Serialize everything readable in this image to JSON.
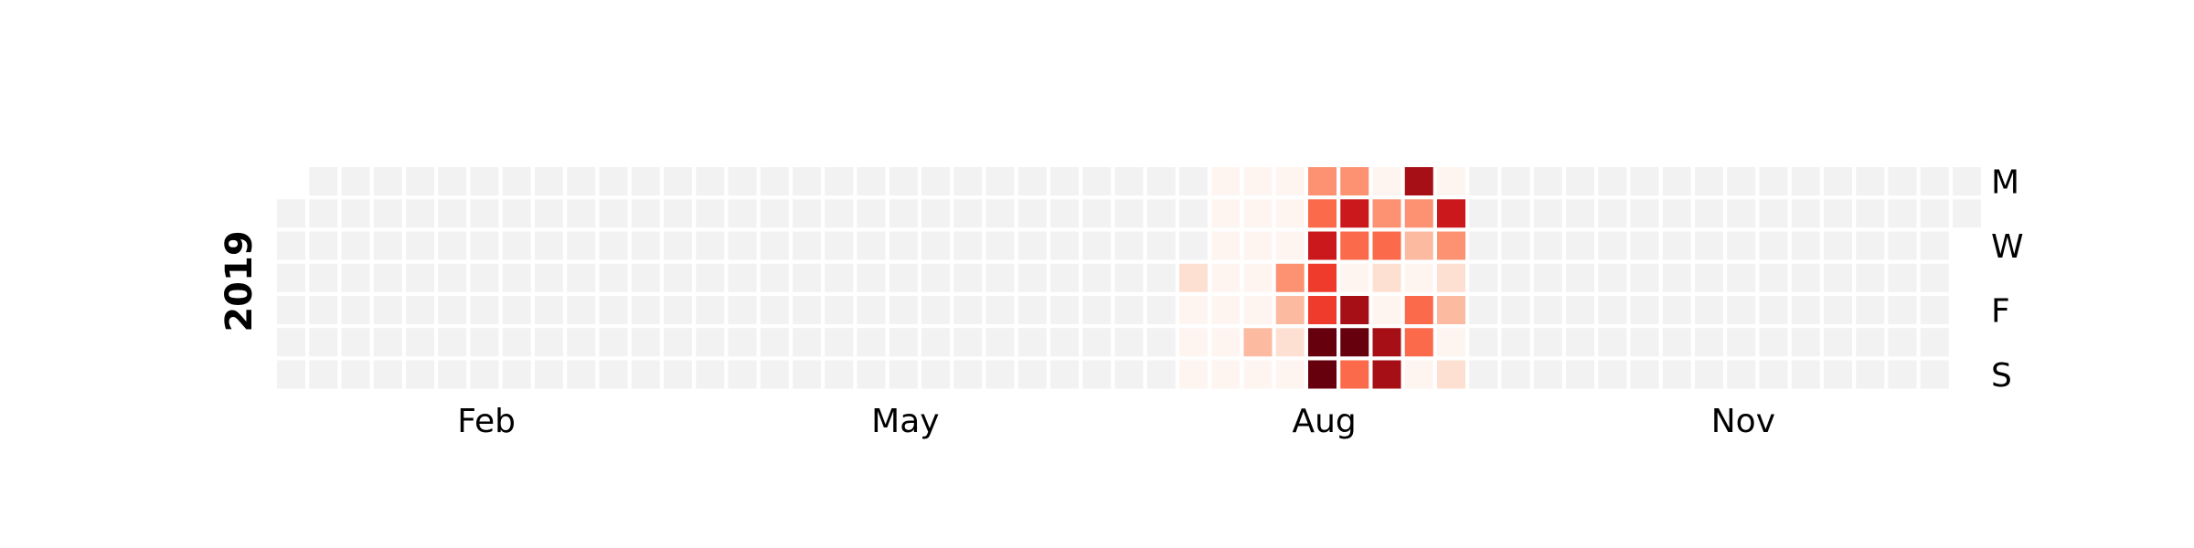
{
  "chart_data": {
    "type": "heatmap",
    "year_label": "2019",
    "weekday_labels": [
      "M",
      "",
      "W",
      "",
      "F",
      "",
      "S"
    ],
    "month_labels": [
      {
        "label": "Feb",
        "week": 6.5
      },
      {
        "label": "May",
        "week": 19.5
      },
      {
        "label": "Aug",
        "week": 32.5
      },
      {
        "label": "Nov",
        "week": 45.5
      }
    ],
    "num_weeks": 53,
    "first_week_start_row": 1,
    "last_week_end_row": 1,
    "colors": {
      "empty": "#f2f2f2",
      "scale": [
        "#fff5f0",
        "#fee0d2",
        "#fcbba1",
        "#fc9272",
        "#fb6a4a",
        "#ef3b2c",
        "#cb181d",
        "#a50f15",
        "#67000d"
      ]
    },
    "active_weeks": [
      {
        "week": 28,
        "levels": [
          null,
          null,
          null,
          1,
          0,
          0,
          0
        ]
      },
      {
        "week": 29,
        "levels": [
          0,
          0,
          0,
          0,
          0,
          0,
          0
        ]
      },
      {
        "week": 30,
        "levels": [
          0,
          0,
          0,
          0,
          0,
          2,
          0
        ]
      },
      {
        "week": 31,
        "levels": [
          0,
          0,
          0,
          3,
          2,
          1,
          0
        ]
      },
      {
        "week": 32,
        "levels": [
          3,
          4,
          6,
          5,
          5,
          8,
          8
        ]
      },
      {
        "week": 33,
        "levels": [
          3,
          6,
          4,
          0,
          7,
          8,
          4
        ]
      },
      {
        "week": 34,
        "levels": [
          0,
          3,
          4,
          1,
          0,
          7,
          7
        ]
      },
      {
        "week": 35,
        "levels": [
          7,
          3,
          2,
          0,
          4,
          4,
          0
        ]
      },
      {
        "week": 36,
        "levels": [
          0,
          6,
          3,
          1,
          2,
          0,
          1
        ]
      }
    ]
  }
}
